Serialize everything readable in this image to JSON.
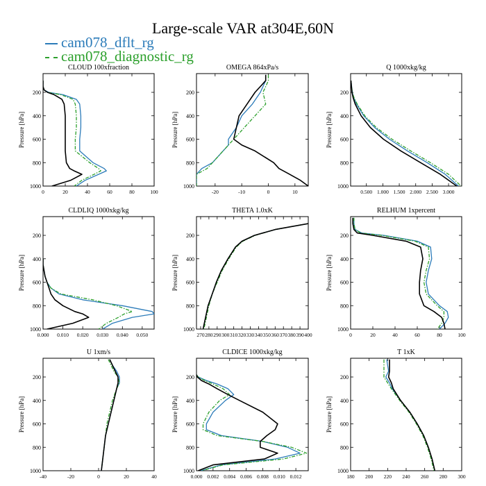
{
  "title": "Large-scale VAR at304E,60N",
  "legend": [
    {
      "name": "cam078_dflt_rg",
      "color": "#2b7bb9",
      "dash": "solid"
    },
    {
      "name": "cam078_diagnostic_rg",
      "color": "#2ca02c",
      "dash": "dashdot"
    }
  ],
  "ref_color": "#000000",
  "chart_data": [
    {
      "type": "line",
      "title": "CLOUD 100xfraction",
      "ylabel": "Pressure [hPa]",
      "xlim": [
        0,
        100
      ],
      "ylim": [
        1000,
        40
      ],
      "xticks": [
        0,
        20,
        40,
        60,
        80,
        100
      ],
      "xticklabels": [
        "0",
        "20",
        "40",
        "60",
        "80",
        "100"
      ],
      "yticks": [
        200,
        400,
        600,
        800,
        1000
      ],
      "yticklabels": [
        "200",
        "400",
        "600",
        "800",
        "1000"
      ],
      "p": [
        100,
        150,
        180,
        200,
        220,
        260,
        300,
        400,
        500,
        600,
        700,
        800,
        850,
        870,
        900,
        950,
        1000
      ],
      "series": [
        {
          "name": "cam078_dflt_rg",
          "x": [
            0,
            0,
            1,
            5,
            18,
            30,
            33,
            34,
            34,
            33,
            33,
            45,
            55,
            57,
            50,
            38,
            30
          ]
        },
        {
          "name": "cam078_diagnostic_rg",
          "x": [
            0,
            0,
            1,
            4,
            16,
            27,
            29,
            30,
            30,
            29,
            29,
            42,
            50,
            52,
            46,
            35,
            28
          ]
        },
        {
          "name": "ref",
          "x": [
            0,
            0,
            1,
            4,
            10,
            17,
            19,
            20,
            20,
            20,
            20,
            21,
            24,
            28,
            35,
            25,
            8
          ]
        }
      ]
    },
    {
      "type": "line",
      "title": "OMEGA 864xPa/s",
      "ylabel": "Pressure [hPa]",
      "xlim": [
        -27,
        15
      ],
      "ylim": [
        1000,
        40
      ],
      "xticks": [
        -20,
        -10,
        0,
        10
      ],
      "xticklabels": [
        "-20",
        "-10",
        "0",
        "10"
      ],
      "yticks": [
        200,
        400,
        600,
        800,
        1000
      ],
      "yticklabels": [
        "200",
        "400",
        "600",
        "800",
        "1000"
      ],
      "p": [
        50,
        100,
        150,
        200,
        300,
        400,
        500,
        600,
        650,
        700,
        800,
        850,
        900,
        950,
        1000
      ],
      "series": [
        {
          "name": "cam078_dflt_rg",
          "x": [
            -1,
            -1,
            -2,
            -3,
            -6,
            -10,
            -12,
            -15,
            -15,
            -17,
            -21,
            -25,
            -27,
            -27,
            -27
          ]
        },
        {
          "name": "cam078_diagnostic_rg",
          "x": [
            0,
            0,
            -1,
            -2,
            -1,
            -5,
            -9,
            -13,
            -15,
            -17,
            -21,
            -23,
            -27,
            -27,
            -27
          ]
        },
        {
          "name": "ref",
          "x": [
            -1,
            -1,
            -3,
            -5,
            -8,
            -11,
            -12,
            -13,
            -10,
            -5,
            2,
            4,
            8,
            12,
            15
          ]
        }
      ]
    },
    {
      "type": "line",
      "title": "Q 1000xkg/kg",
      "ylabel": "Pressure [hPa]",
      "xlim": [
        0.02,
        3.4
      ],
      "ylim": [
        1000,
        40
      ],
      "xticks": [
        0.5,
        1.0,
        1.5,
        2.0,
        2.5,
        3.0
      ],
      "xticklabels": [
        "0.500",
        "1.000",
        "1.500",
        "2.000",
        "2.500",
        "3.000"
      ],
      "yticks": [
        200,
        400,
        600,
        800,
        1000
      ],
      "yticklabels": [
        "200",
        "400",
        "600",
        "800",
        "1000"
      ],
      "p": [
        100,
        200,
        250,
        300,
        400,
        500,
        600,
        700,
        800,
        900,
        1000
      ],
      "series": [
        {
          "name": "cam078_dflt_rg",
          "x": [
            0.03,
            0.07,
            0.12,
            0.2,
            0.42,
            0.75,
            1.2,
            1.75,
            2.35,
            2.9,
            3.3
          ]
        },
        {
          "name": "cam078_diagnostic_rg",
          "x": [
            0.03,
            0.07,
            0.13,
            0.22,
            0.45,
            0.8,
            1.28,
            1.85,
            2.45,
            3.0,
            3.38
          ]
        },
        {
          "name": "ref",
          "x": [
            0.03,
            0.06,
            0.1,
            0.16,
            0.34,
            0.62,
            1.02,
            1.55,
            2.15,
            2.75,
            3.25
          ]
        }
      ]
    },
    {
      "type": "line",
      "title": "CLDLIQ 1000xkg/kg",
      "ylabel": "Pressure [hPa]",
      "xlim": [
        0,
        0.056
      ],
      "ylim": [
        1000,
        40
      ],
      "xticks": [
        0,
        0.01,
        0.02,
        0.03,
        0.04,
        0.05
      ],
      "xticklabels": [
        "0.000",
        "0.010",
        "0.020",
        "0.030",
        "0.040",
        "0.050"
      ],
      "yticks": [
        200,
        400,
        600,
        800,
        1000
      ],
      "yticklabels": [
        "200",
        "400",
        "600",
        "800",
        "1000"
      ],
      "p": [
        400,
        450,
        500,
        550,
        600,
        650,
        700,
        750,
        800,
        850,
        870,
        900,
        950,
        1000
      ],
      "series": [
        {
          "name": "cam078_dflt_rg",
          "x": [
            0,
            0,
            0.0005,
            0.001,
            0.002,
            0.004,
            0.008,
            0.02,
            0.04,
            0.055,
            0.056,
            0.045,
            0.035,
            0.03
          ]
        },
        {
          "name": "cam078_diagnostic_rg",
          "x": [
            0,
            0,
            0.0005,
            0.001,
            0.002,
            0.004,
            0.009,
            0.025,
            0.037,
            0.045,
            0.041,
            0.038,
            0.032,
            0.028
          ]
        },
        {
          "name": "ref",
          "x": [
            0,
            0,
            0.0005,
            0.001,
            0.002,
            0.003,
            0.004,
            0.006,
            0.01,
            0.016,
            0.02,
            0.023,
            0.015,
            0.002
          ]
        }
      ]
    },
    {
      "type": "line",
      "title": "THETA 1.0xK",
      "ylabel": "Pressure [hPa]",
      "xlim": [
        265,
        400
      ],
      "ylim": [
        1000,
        40
      ],
      "xticks": [
        270,
        280,
        290,
        300,
        310,
        320,
        330,
        340,
        350,
        360,
        370,
        380,
        390,
        400
      ],
      "xticklabels": [
        "270",
        "280",
        "290",
        "300",
        "310",
        "320",
        "330",
        "340",
        "350",
        "360",
        "370",
        "380",
        "390",
        "400"
      ],
      "yticks": [
        200,
        400,
        600,
        800,
        1000
      ],
      "yticklabels": [
        "200",
        "400",
        "600",
        "800",
        "1000"
      ],
      "p": [
        100,
        150,
        200,
        250,
        300,
        400,
        500,
        600,
        700,
        800,
        900,
        1000
      ],
      "series": [
        {
          "name": "cam078_dflt_rg",
          "x": [
            400,
            360,
            335,
            320,
            312,
            303,
            295,
            289,
            284,
            279,
            276,
            273
          ]
        },
        {
          "name": "cam078_diagnostic_rg",
          "x": [
            400,
            360,
            336,
            321,
            313,
            304,
            296,
            290,
            284,
            280,
            277,
            274
          ]
        },
        {
          "name": "ref",
          "x": [
            400,
            360,
            335,
            320,
            312,
            303,
            295,
            289,
            284,
            279,
            276,
            273
          ]
        }
      ]
    },
    {
      "type": "line",
      "title": "RELHUM 1xpercent",
      "ylabel": "Pressure [hPa]",
      "xlim": [
        0,
        100
      ],
      "ylim": [
        1000,
        40
      ],
      "xticks": [
        0,
        20,
        40,
        60,
        80,
        100
      ],
      "xticklabels": [
        "0",
        "20",
        "40",
        "60",
        "80",
        "100"
      ],
      "yticks": [
        200,
        400,
        600,
        800,
        1000
      ],
      "yticklabels": [
        "200",
        "400",
        "600",
        "800",
        "1000"
      ],
      "p": [
        50,
        100,
        150,
        180,
        200,
        250,
        300,
        400,
        500,
        600,
        700,
        800,
        850,
        900,
        950,
        1000
      ],
      "series": [
        {
          "name": "cam078_dflt_rg",
          "x": [
            3,
            3,
            4,
            10,
            30,
            60,
            72,
            73,
            70,
            68,
            70,
            80,
            87,
            88,
            85,
            80
          ]
        },
        {
          "name": "cam078_diagnostic_rg",
          "x": [
            3,
            3,
            4,
            9,
            28,
            58,
            70,
            71,
            68,
            66,
            68,
            78,
            84,
            84,
            82,
            78
          ]
        },
        {
          "name": "ref",
          "x": [
            2,
            2,
            3,
            6,
            20,
            50,
            63,
            65,
            63,
            62,
            62,
            66,
            75,
            82,
            84,
            85
          ]
        }
      ]
    },
    {
      "type": "line",
      "title": "U 1xm/s",
      "ylabel": "Pressure [hPa]",
      "xlim": [
        -40,
        40
      ],
      "ylim": [
        1000,
        40
      ],
      "xticks": [
        -40,
        -20,
        0,
        20,
        40
      ],
      "xticklabels": [
        "-40",
        "-20",
        "0",
        "20",
        "40"
      ],
      "yticks": [
        200,
        400,
        600,
        800,
        1000
      ],
      "yticklabels": [
        "200",
        "400",
        "600",
        "800",
        "1000"
      ],
      "p": [
        50,
        100,
        150,
        200,
        250,
        300,
        400,
        500,
        600,
        700,
        800,
        900,
        1000
      ],
      "series": [
        {
          "name": "cam078_dflt_rg",
          "x": [
            8,
            10,
            13,
            15,
            15,
            13,
            11,
            9,
            7,
            5,
            4,
            3,
            2
          ]
        },
        {
          "name": "cam078_diagnostic_rg",
          "x": [
            7,
            9,
            11,
            14,
            15,
            13,
            10,
            8,
            6,
            5,
            4,
            3,
            2
          ]
        },
        {
          "name": "ref",
          "x": [
            8,
            10,
            12,
            14,
            14,
            13,
            11,
            9,
            7,
            5,
            4,
            3,
            2
          ]
        }
      ]
    },
    {
      "type": "line",
      "title": "CLDICE 1000xkg/kg",
      "ylabel": "Pressure [hPa]",
      "xlim": [
        0,
        0.0135
      ],
      "ylim": [
        1000,
        40
      ],
      "xticks": [
        0,
        0.002,
        0.004,
        0.006,
        0.008,
        0.01,
        0.012
      ],
      "xticklabels": [
        "0.000",
        "0.002",
        "0.004",
        "0.006",
        "0.008",
        "0.010",
        "0.012"
      ],
      "yticks": [
        200,
        400,
        600,
        800,
        1000
      ],
      "yticklabels": [
        "200",
        "400",
        "600",
        "800",
        "1000"
      ],
      "p": [
        180,
        200,
        230,
        260,
        300,
        350,
        400,
        500,
        600,
        650,
        700,
        750,
        800,
        850,
        900,
        950,
        1000
      ],
      "series": [
        {
          "name": "cam078_dflt_rg",
          "x": [
            0,
            0.0002,
            0.0012,
            0.0025,
            0.0038,
            0.0045,
            0.0035,
            0.002,
            0.0012,
            0.0012,
            0.003,
            0.008,
            0.011,
            0.0125,
            0.0095,
            0.003,
            0.0005
          ]
        },
        {
          "name": "cam078_diagnostic_rg",
          "x": [
            0,
            0.0002,
            0.001,
            0.002,
            0.0032,
            0.004,
            0.0028,
            0.0015,
            0.0008,
            0.0008,
            0.0025,
            0.008,
            0.0115,
            0.0133,
            0.0105,
            0.0032,
            0.0006
          ]
        },
        {
          "name": "ref",
          "x": [
            0,
            0.0001,
            0.0006,
            0.0015,
            0.0025,
            0.0038,
            0.0052,
            0.008,
            0.0098,
            0.0095,
            0.0085,
            0.0077,
            0.0077,
            0.0098,
            0.0082,
            0.002,
            0.0002
          ]
        }
      ]
    },
    {
      "type": "line",
      "title": "T 1xK",
      "ylabel": "Pressure [hPa]",
      "xlim": [
        180,
        300
      ],
      "ylim": [
        1000,
        40
      ],
      "xticks": [
        180,
        200,
        220,
        240,
        260,
        280,
        300
      ],
      "xticklabels": [
        "180",
        "200",
        "220",
        "240",
        "260",
        "280",
        "300"
      ],
      "yticks": [
        200,
        400,
        600,
        800,
        1000
      ],
      "yticklabels": [
        "200",
        "400",
        "600",
        "800",
        "1000"
      ],
      "p": [
        50,
        100,
        150,
        200,
        250,
        300,
        400,
        500,
        600,
        700,
        800,
        900,
        1000
      ],
      "series": [
        {
          "name": "cam078_dflt_rg",
          "x": [
            219,
            220,
            221,
            218,
            222,
            225,
            234,
            244,
            252,
            259,
            264,
            268,
            271
          ]
        },
        {
          "name": "cam078_diagnostic_rg",
          "x": [
            216,
            216,
            216,
            216,
            220,
            224,
            233,
            243,
            251,
            258,
            263,
            267,
            270
          ]
        },
        {
          "name": "ref",
          "x": [
            222,
            222,
            222,
            221,
            224,
            226,
            234,
            244,
            252,
            259,
            264,
            268,
            271
          ]
        }
      ]
    }
  ]
}
